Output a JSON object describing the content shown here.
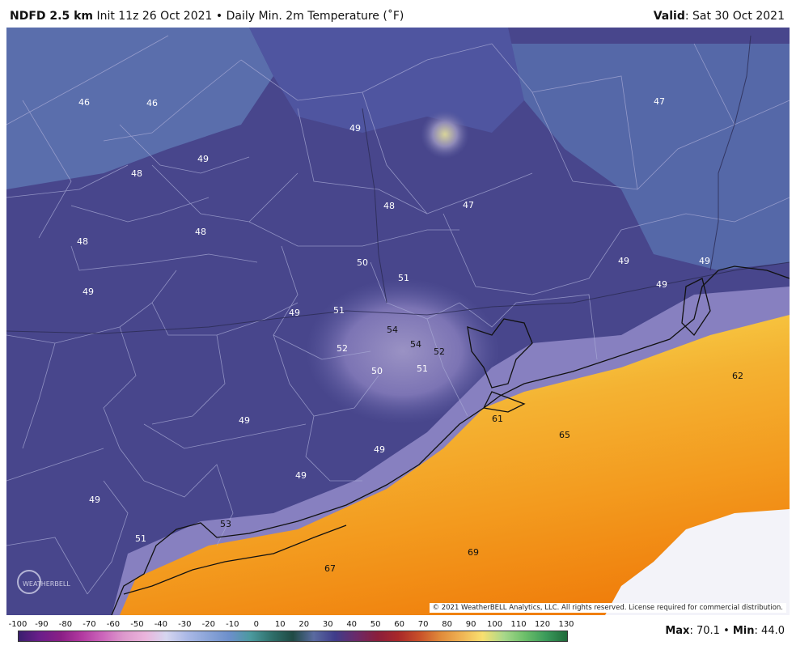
{
  "header": {
    "model": "NDFD 2.5 km",
    "init": "Init 11z 26 Oct 2021",
    "bullet": "•",
    "field": "Daily Min. 2m Temperature (˚F)",
    "valid_label": "Valid",
    "valid_date": ": Sat 30 Oct 2021"
  },
  "map": {
    "copyright": "© 2021 WeatherBELL Analytics, LLC. All rights reserved. License required for commercial distribution.",
    "logo_text": "WEATHERBELL",
    "labels": [
      {
        "text": "46",
        "dark": false
      },
      {
        "text": "46",
        "dark": false
      },
      {
        "text": "47",
        "dark": false
      },
      {
        "text": "49",
        "dark": false
      },
      {
        "text": "49",
        "dark": false
      },
      {
        "text": "48",
        "dark": false
      },
      {
        "text": "48",
        "dark": false
      },
      {
        "text": "47",
        "dark": false
      },
      {
        "text": "48",
        "dark": false
      },
      {
        "text": "48",
        "dark": false
      },
      {
        "text": "50",
        "dark": false
      },
      {
        "text": "51",
        "dark": false
      },
      {
        "text": "49",
        "dark": false
      },
      {
        "text": "49",
        "dark": false
      },
      {
        "text": "49",
        "dark": false
      },
      {
        "text": "49",
        "dark": false
      },
      {
        "text": "51",
        "dark": false
      },
      {
        "text": "49",
        "dark": false
      },
      {
        "text": "54",
        "dark": true
      },
      {
        "text": "54",
        "dark": true
      },
      {
        "text": "52",
        "dark": true
      },
      {
        "text": "52",
        "dark": false
      },
      {
        "text": "50",
        "dark": false
      },
      {
        "text": "51",
        "dark": false
      },
      {
        "text": "62",
        "dark": true
      },
      {
        "text": "49",
        "dark": false
      },
      {
        "text": "61",
        "dark": true
      },
      {
        "text": "65",
        "dark": true
      },
      {
        "text": "49",
        "dark": false
      },
      {
        "text": "49",
        "dark": false
      },
      {
        "text": "49",
        "dark": false
      },
      {
        "text": "53",
        "dark": true
      },
      {
        "text": "51",
        "dark": false
      },
      {
        "text": "69",
        "dark": true
      },
      {
        "text": "67",
        "dark": true
      }
    ]
  },
  "legend": {
    "ticks": [
      "-100",
      "-90",
      "-80",
      "-70",
      "-60",
      "-50",
      "-40",
      "-30",
      "-20",
      "-10",
      "0",
      "10",
      "20",
      "30",
      "40",
      "50",
      "60",
      "70",
      "80",
      "90",
      "100",
      "110",
      "120",
      "130"
    ],
    "max_label": "Max",
    "max_value": ": 70.1",
    "bullet": "•",
    "min_label": "Min",
    "min_value": ": 44.0",
    "colors": [
      "#3a1f6e",
      "#6a1e8a",
      "#8a1f86",
      "#b23aa0",
      "#cc66bb",
      "#dd99cc",
      "#eab4dc",
      "#d6d6f0",
      "#aab8e6",
      "#8aa4d8",
      "#6c8fcb",
      "#4b9a9e",
      "#2f6f6a",
      "#1f4a44",
      "#5a6aa0",
      "#3f3c8a",
      "#6a2a6a",
      "#8a1e3c",
      "#a8282a",
      "#c8502a",
      "#e08a3a",
      "#f0b454",
      "#f8e070",
      "#a8d88a",
      "#6cbf6a",
      "#3a9a5a",
      "#1f6a3a"
    ]
  }
}
